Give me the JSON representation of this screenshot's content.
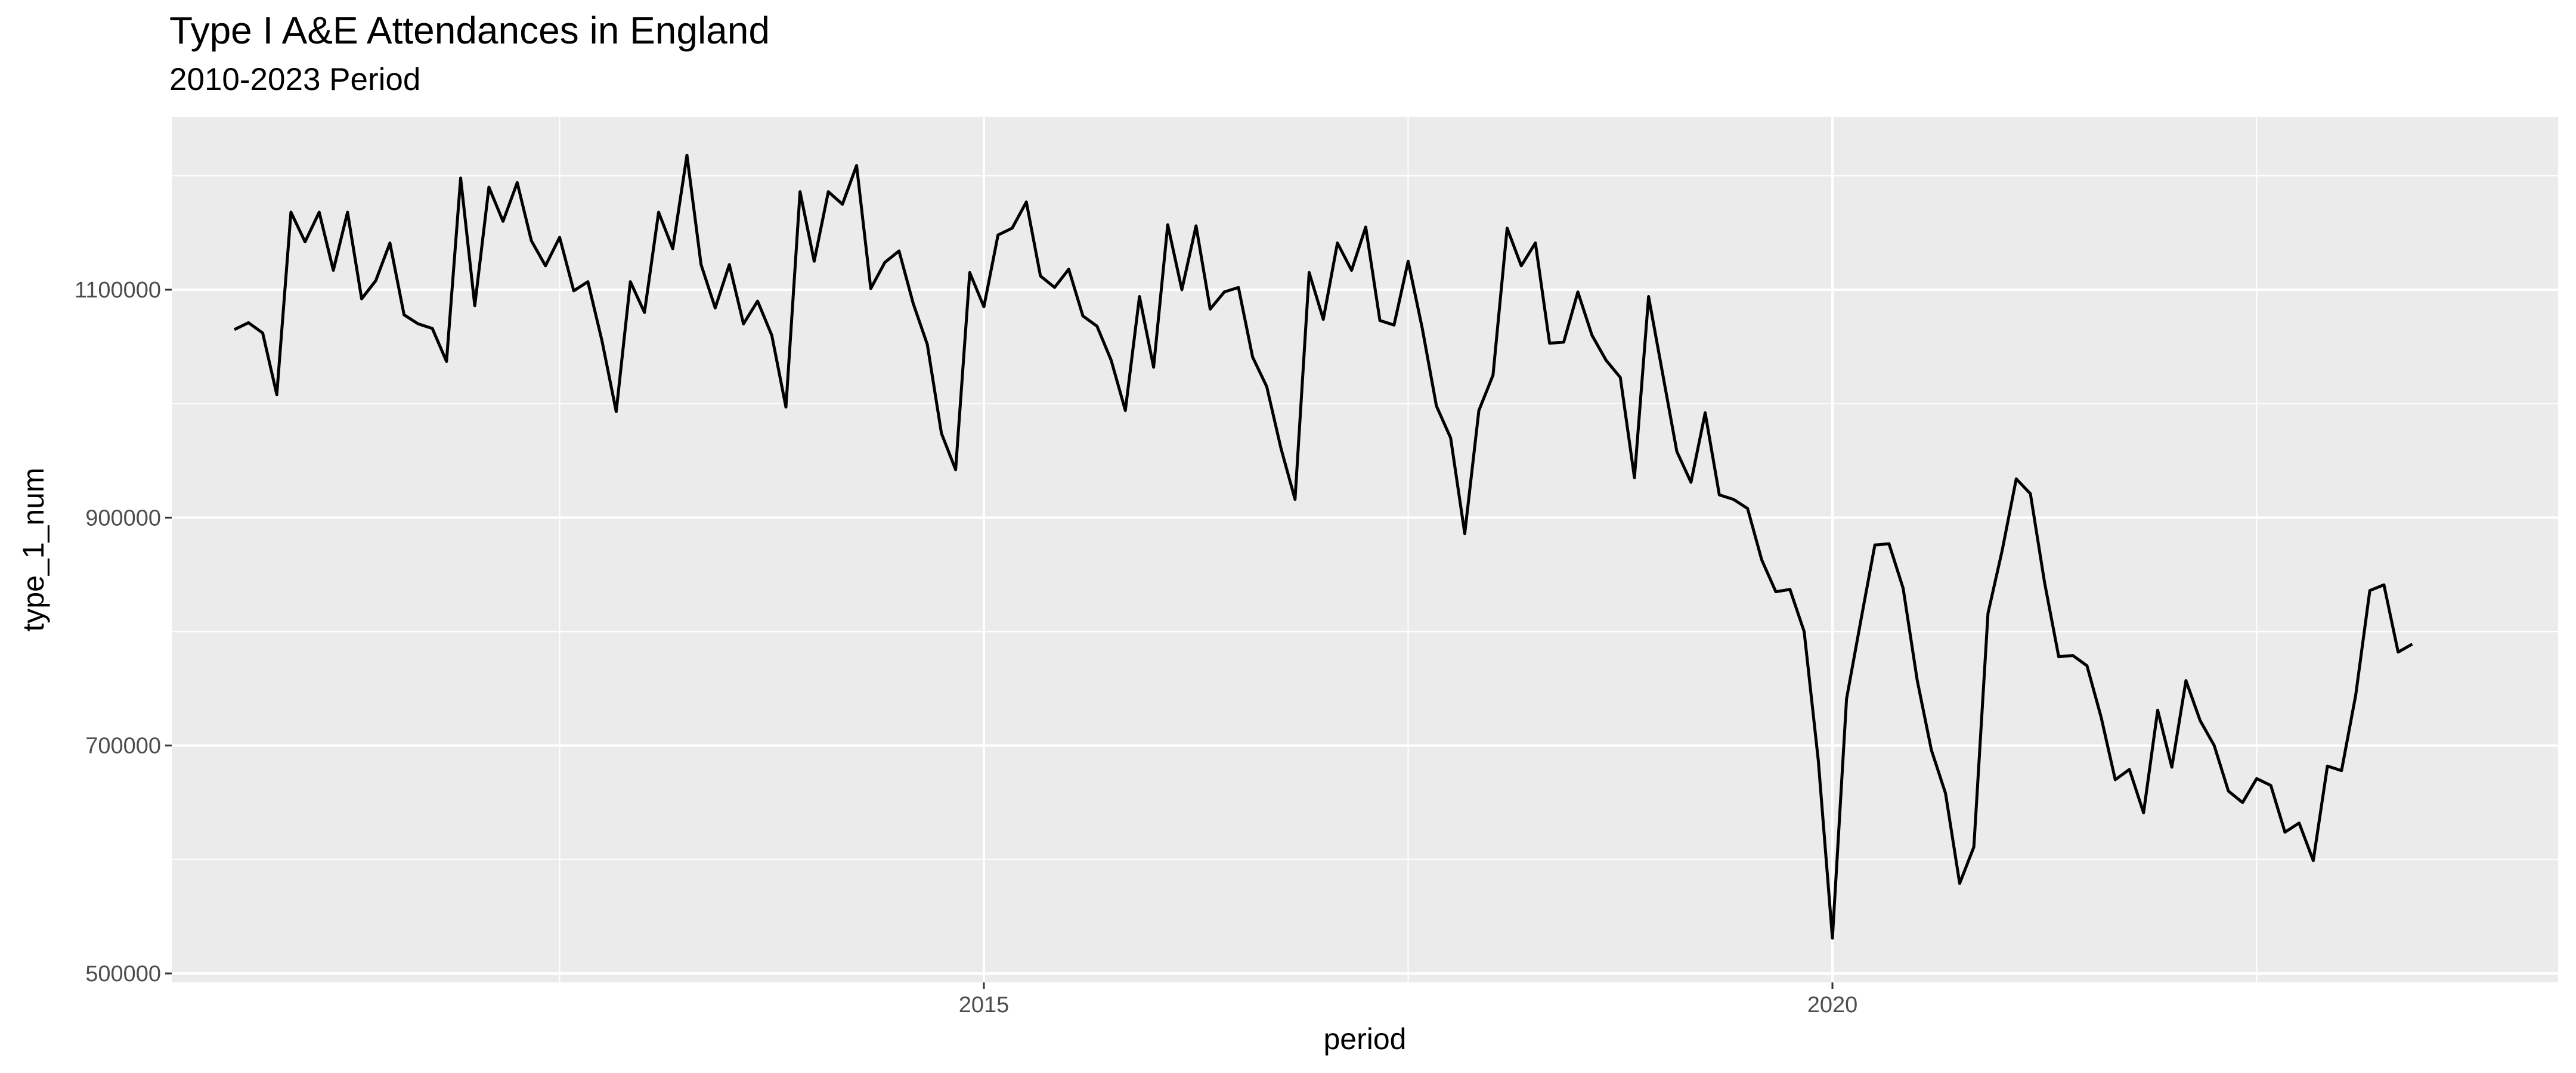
{
  "chart_data": {
    "type": "line",
    "title": "Type I A&E Attendances in England",
    "subtitle": "2010-2023 Period",
    "xlabel": "period",
    "ylabel": "type_1_num",
    "x_ticks": [
      "2015",
      "2020"
    ],
    "y_ticks": [
      "500000",
      "700000",
      "900000",
      "1100000"
    ],
    "grid": true,
    "series": [
      {
        "x_start": "2010-08",
        "frequency": "monthly",
        "values": [
          1065000,
          1071000,
          1062000,
          1008000,
          1168000,
          1142000,
          1168000,
          1117000,
          1168000,
          1092000,
          1108000,
          1141000,
          1078000,
          1070000,
          1066000,
          1037000,
          1198000,
          1086000,
          1190000,
          1160000,
          1194000,
          1143000,
          1121000,
          1146000,
          1099000,
          1107000,
          1055000,
          993000,
          1107000,
          1080000,
          1168000,
          1136000,
          1218000,
          1122000,
          1084000,
          1122000,
          1070000,
          1090000,
          1060000,
          997000,
          1186000,
          1125000,
          1186000,
          1175000,
          1209000,
          1101000,
          1124000,
          1134000,
          1088000,
          1052000,
          974000,
          942000,
          1115000,
          1085000,
          1148000,
          1154000,
          1177000,
          1112000,
          1102000,
          1118000,
          1077000,
          1068000,
          1038000,
          994000,
          1094000,
          1032000,
          1157000,
          1100000,
          1156000,
          1083000,
          1098000,
          1102000,
          1041000,
          1015000,
          961000,
          916000,
          1115000,
          1074000,
          1141000,
          1117000,
          1155000,
          1073000,
          1069000,
          1125000,
          1066000,
          998000,
          970000,
          886000,
          994000,
          1025000,
          1154000,
          1121000,
          1141000,
          1053000,
          1054000,
          1098000,
          1060000,
          1038000,
          1023000,
          935000,
          1094000,
          1026000,
          958000,
          931000,
          992000,
          920000,
          916000,
          908000,
          863000,
          835000,
          837000,
          800000,
          687000,
          531000,
          741000,
          809000,
          876000,
          877000,
          838000,
          757000,
          696000,
          658000,
          579000,
          611000,
          816000,
          871000,
          934000,
          921000,
          843000,
          778000,
          779000,
          770000,
          725000,
          670000,
          679000,
          641000,
          731000,
          681000,
          757000,
          722000,
          700000,
          660000,
          650000,
          671000,
          665000,
          624000,
          632000,
          599000,
          682000,
          678000,
          744000,
          836000,
          841000,
          782000,
          789000
        ]
      }
    ]
  }
}
